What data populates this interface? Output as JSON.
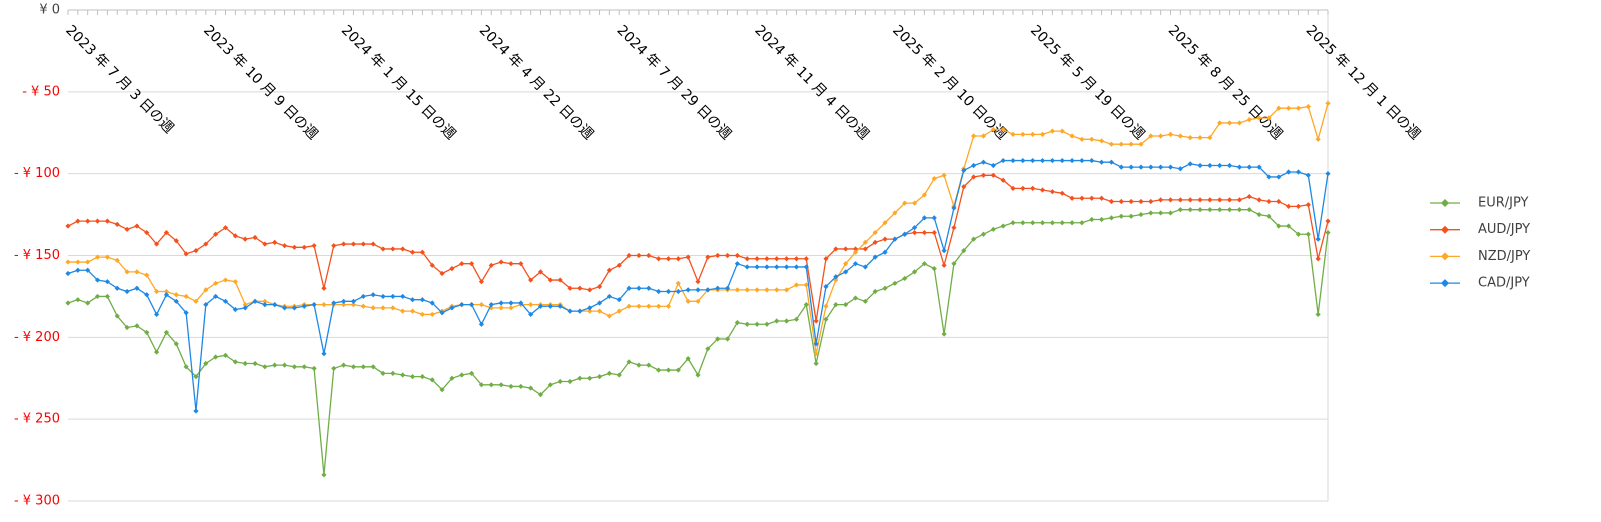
{
  "chart_data": {
    "type": "line",
    "categories": [
      "2023 年 7 月 3 日の週",
      null,
      null,
      null,
      null,
      null,
      null,
      null,
      null,
      null,
      null,
      null,
      null,
      null,
      "2023 年 10 月 9 日の週",
      null,
      null,
      null,
      null,
      null,
      null,
      null,
      null,
      null,
      null,
      null,
      null,
      null,
      "2024 年 1 月 15 日の週",
      null,
      null,
      null,
      null,
      null,
      null,
      null,
      null,
      null,
      null,
      null,
      null,
      null,
      "2024 年 4 月 22 日の週",
      null,
      null,
      null,
      null,
      null,
      null,
      null,
      null,
      null,
      null,
      null,
      null,
      null,
      "2024 年 7 月 29 日の週",
      null,
      null,
      null,
      null,
      null,
      null,
      null,
      null,
      null,
      null,
      null,
      null,
      null,
      "2024 年 11 月 4 日の週",
      null,
      null,
      null,
      null,
      null,
      null,
      null,
      null,
      null,
      null,
      null,
      null,
      null,
      "2025 年 2 月 10 日の週",
      null,
      null,
      null,
      null,
      null,
      null,
      null,
      null,
      null,
      null,
      null,
      null,
      null,
      "2025 年 5 月 19 日の週",
      null,
      null,
      null,
      null,
      null,
      null,
      null,
      null,
      null,
      null,
      null,
      null,
      null,
      "2025 年 8 月 25 日の週",
      null,
      null,
      null,
      null,
      null,
      null,
      null,
      null,
      null,
      null,
      null,
      null,
      null,
      "2025 年 12 月 1 日の週",
      null,
      null
    ],
    "series": [
      {
        "name": "EUR/JPY",
        "color": "#70ad47",
        "values": [
          -179,
          -177,
          -179,
          -175,
          -175,
          -187,
          -194,
          -193,
          -197,
          -209,
          -197,
          -204,
          -218,
          -224,
          -216,
          -212,
          -211,
          -215,
          -216,
          -216,
          -218,
          -217,
          -217,
          -218,
          -218,
          -219,
          -284,
          -219,
          -217,
          -218,
          -218,
          -218,
          -222,
          -222,
          -223,
          -224,
          -224,
          -226,
          -232,
          -225,
          -223,
          -222,
          -229,
          -229,
          -229,
          -230,
          -230,
          -231,
          -235,
          -229,
          -227,
          -227,
          -225,
          -225,
          -224,
          -222,
          -223,
          -215,
          -217,
          -217,
          -220,
          -220,
          -220,
          -213,
          -223,
          -207,
          -201,
          -201,
          -191,
          -192,
          -192,
          -192,
          -190,
          -190,
          -189,
          -180,
          -216,
          -189,
          -180,
          -180,
          -176,
          -178,
          -172,
          -170,
          -167,
          -164,
          -160,
          -155,
          -158,
          -198,
          -155,
          -147,
          -140,
          -137,
          -134,
          -132,
          -130,
          -130,
          -130,
          -130,
          -130,
          -130,
          -130,
          -130,
          -128,
          -128,
          -127,
          -126,
          -126,
          -125,
          -124,
          -124,
          -124,
          -122,
          -122,
          -122,
          -122,
          -122,
          -122,
          -122,
          -122,
          -125,
          -126,
          -132,
          -132,
          -137,
          -137,
          -186,
          -136
        ]
      },
      {
        "name": "AUD/JPY",
        "color": "#f4511e",
        "values": [
          -132,
          -129,
          -129,
          -129,
          -129,
          -131,
          -134,
          -132,
          -136,
          -143,
          -136,
          -141,
          -149,
          -147,
          -143,
          -137,
          -133,
          -138,
          -140,
          -139,
          -143,
          -142,
          -144,
          -145,
          -145,
          -144,
          -170,
          -144,
          -143,
          -143,
          -143,
          -143,
          -146,
          -146,
          -146,
          -148,
          -148,
          -156,
          -161,
          -158,
          -155,
          -155,
          -166,
          -156,
          -154,
          -155,
          -155,
          -165,
          -160,
          -165,
          -165,
          -170,
          -170,
          -171,
          -169,
          -159,
          -156,
          -150,
          -150,
          -150,
          -152,
          -152,
          -152,
          -151,
          -166,
          -151,
          -150,
          -150,
          -150,
          -152,
          -152,
          -152,
          -152,
          -152,
          -152,
          -152,
          -190,
          -152,
          -146,
          -146,
          -146,
          -146,
          -142,
          -140,
          -140,
          -137,
          -136,
          -136,
          -136,
          -156,
          -133,
          -108,
          -102,
          -101,
          -101,
          -104,
          -109,
          -109,
          -109,
          -110,
          -111,
          -112,
          -115,
          -115,
          -115,
          -115,
          -117,
          -117,
          -117,
          -117,
          -117,
          -116,
          -116,
          -116,
          -116,
          -116,
          -116,
          -116,
          -116,
          -116,
          -114,
          -116,
          -117,
          -117,
          -120,
          -120,
          -119,
          -152,
          -129
        ]
      },
      {
        "name": "NZD/JPY",
        "color": "#ffa726",
        "values": [
          -154,
          -154,
          -154,
          -151,
          -151,
          -153,
          -160,
          -160,
          -162,
          -172,
          -172,
          -174,
          -175,
          -178,
          -171,
          -167,
          -165,
          -166,
          -180,
          -178,
          -178,
          -180,
          -181,
          -181,
          -180,
          -180,
          -180,
          -180,
          -180,
          -180,
          -181,
          -182,
          -182,
          -182,
          -184,
          -184,
          -186,
          -186,
          -184,
          -181,
          -180,
          -180,
          -180,
          -182,
          -182,
          -182,
          -180,
          -180,
          -180,
          -180,
          -180,
          -184,
          -184,
          -184,
          -184,
          -187,
          -184,
          -181,
          -181,
          -181,
          -181,
          -181,
          -167,
          -178,
          -178,
          -171,
          -171,
          -171,
          -171,
          -171,
          -171,
          -171,
          -171,
          -171,
          -168,
          -168,
          -210,
          -181,
          -165,
          -155,
          -148,
          -142,
          -136,
          -130,
          -124,
          -118,
          -118,
          -113,
          -103,
          -101,
          -120,
          -97,
          -77,
          -77,
          -73,
          -73,
          -76,
          -76,
          -76,
          -76,
          -74,
          -74,
          -77,
          -79,
          -79,
          -80,
          -82,
          -82,
          -82,
          -82,
          -77,
          -77,
          -76,
          -77,
          -78,
          -78,
          -78,
          -69,
          -69,
          -69,
          -67,
          -66,
          -66,
          -60,
          -60,
          -60,
          -59,
          -79,
          -57
        ]
      },
      {
        "name": "CAD/JPY",
        "color": "#1e88e5",
        "values": [
          -161,
          -159,
          -159,
          -165,
          -166,
          -170,
          -172,
          -170,
          -174,
          -186,
          -174,
          -178,
          -185,
          -245,
          -180,
          -175,
          -178,
          -183,
          -182,
          -178,
          -180,
          -180,
          -182,
          -182,
          -181,
          -180,
          -210,
          -179,
          -178,
          -178,
          -175,
          -174,
          -175,
          -175,
          -175,
          -177,
          -177,
          -179,
          -185,
          -182,
          -180,
          -180,
          -192,
          -180,
          -179,
          -179,
          -179,
          -186,
          -181,
          -181,
          -181,
          -184,
          -184,
          -182,
          -179,
          -175,
          -177,
          -170,
          -170,
          -170,
          -172,
          -172,
          -172,
          -171,
          -171,
          -171,
          -170,
          -170,
          -155,
          -157,
          -157,
          -157,
          -157,
          -157,
          -157,
          -157,
          -204,
          -169,
          -163,
          -160,
          -155,
          -157,
          -151,
          -148,
          -140,
          -137,
          -133,
          -127,
          -127,
          -147,
          -121,
          -98,
          -95,
          -93,
          -95,
          -92,
          -92,
          -92,
          -92,
          -92,
          -92,
          -92,
          -92,
          -92,
          -92,
          -93,
          -93,
          -96,
          -96,
          -96,
          -96,
          -96,
          -96,
          -97,
          -94,
          -95,
          -95,
          -95,
          -95,
          -96,
          -96,
          -96,
          -102,
          -102,
          -99,
          -99,
          -101,
          -140,
          -100
        ]
      }
    ],
    "ylim": [
      -300,
      0
    ],
    "yticks": [
      {
        "value": 0,
        "label": "¥ 0"
      },
      {
        "value": -50,
        "label": "- ¥ 50"
      },
      {
        "value": -100,
        "label": "- ¥ 100"
      },
      {
        "value": -150,
        "label": "- ¥ 150"
      },
      {
        "value": -200,
        "label": "- ¥ 200"
      },
      {
        "value": -250,
        "label": "- ¥ 250"
      },
      {
        "value": -300,
        "label": "- ¥ 300"
      }
    ],
    "y_reversed": true,
    "negative_color": "#ff0000",
    "grid": true,
    "legend": "right"
  }
}
